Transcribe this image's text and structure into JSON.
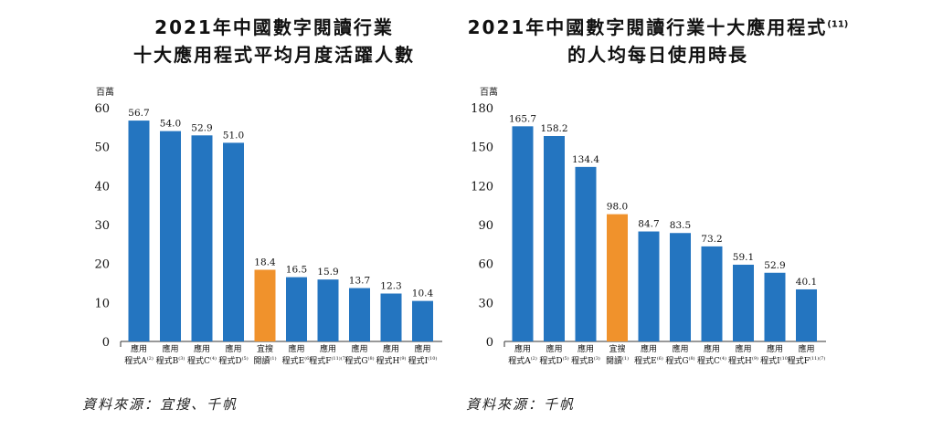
{
  "chart_data": [
    {
      "type": "bar",
      "title_line1": "2021年中國數字閱讀行業",
      "title_line2": "十大應用程式平均月度活躍人數",
      "ylabel": "百萬",
      "ylim": [
        0,
        60
      ],
      "yticks": [
        "0",
        "10",
        "20",
        "30",
        "40",
        "50",
        "60"
      ],
      "categories": [
        {
          "line1": "應用",
          "line2": "程式A",
          "note": "(2)"
        },
        {
          "line1": "應用",
          "line2": "程式B",
          "note": "(3)"
        },
        {
          "line1": "應用",
          "line2": "程式C",
          "note": "(4)"
        },
        {
          "line1": "應用",
          "line2": "程式D",
          "note": "(5)"
        },
        {
          "line1": "宜搜",
          "line2": "閱讀",
          "note": "(1)"
        },
        {
          "line1": "應用",
          "line2": "程式E",
          "note": "(6)"
        },
        {
          "line1": "應用",
          "line2": "程式F",
          "note": "(11)(7)"
        },
        {
          "line1": "應用",
          "line2": "程式G",
          "note": "(8)"
        },
        {
          "line1": "應用",
          "line2": "程式H",
          "note": "(9)"
        },
        {
          "line1": "應用",
          "line2": "程式I",
          "note": "(10)"
        }
      ],
      "values": [
        56.7,
        54.0,
        52.9,
        51.0,
        18.4,
        16.5,
        15.9,
        13.7,
        12.3,
        10.4
      ],
      "value_labels": [
        "56.7",
        "54.0",
        "52.9",
        "51.0",
        "18.4",
        "16.5",
        "15.9",
        "13.7",
        "12.3",
        "10.4"
      ],
      "highlight_index": 4,
      "colors": {
        "bar": "#2475c0",
        "highlight": "#f0922c"
      },
      "source": "資料來源：宜搜、千帆"
    },
    {
      "type": "bar",
      "title_line1": "2021年中國數字閱讀行業十大應用程式",
      "title_note": "(11)",
      "title_line2": "的人均每日使用時長",
      "ylabel": "百萬",
      "ylim": [
        0,
        180
      ],
      "yticks": [
        "0",
        "30",
        "60",
        "90",
        "120",
        "150",
        "180"
      ],
      "categories": [
        {
          "line1": "應用",
          "line2": "程式A",
          "note": "(2)"
        },
        {
          "line1": "應用",
          "line2": "程式D",
          "note": "(5)"
        },
        {
          "line1": "應用",
          "line2": "程式B",
          "note": "(3)"
        },
        {
          "line1": "宜搜",
          "line2": "閱讀",
          "note": "(1)"
        },
        {
          "line1": "應用",
          "line2": "程式E",
          "note": "(6)"
        },
        {
          "line1": "應用",
          "line2": "程式G",
          "note": "(8)"
        },
        {
          "line1": "應用",
          "line2": "程式C",
          "note": "(4)"
        },
        {
          "line1": "應用",
          "line2": "程式H",
          "note": "(9)"
        },
        {
          "line1": "應用",
          "line2": "程式I",
          "note": "(10)"
        },
        {
          "line1": "應用",
          "line2": "程式F",
          "note": "(11)(7)"
        }
      ],
      "values": [
        165.7,
        158.2,
        134.4,
        98.0,
        84.7,
        83.5,
        73.2,
        59.1,
        52.9,
        40.1
      ],
      "value_labels": [
        "165.7",
        "158.2",
        "134.4",
        "98.0",
        "84.7",
        "83.5",
        "73.2",
        "59.1",
        "52.9",
        "40.1"
      ],
      "highlight_index": 3,
      "colors": {
        "bar": "#2475c0",
        "highlight": "#f0922c"
      },
      "source": "資料來源：千帆"
    }
  ]
}
